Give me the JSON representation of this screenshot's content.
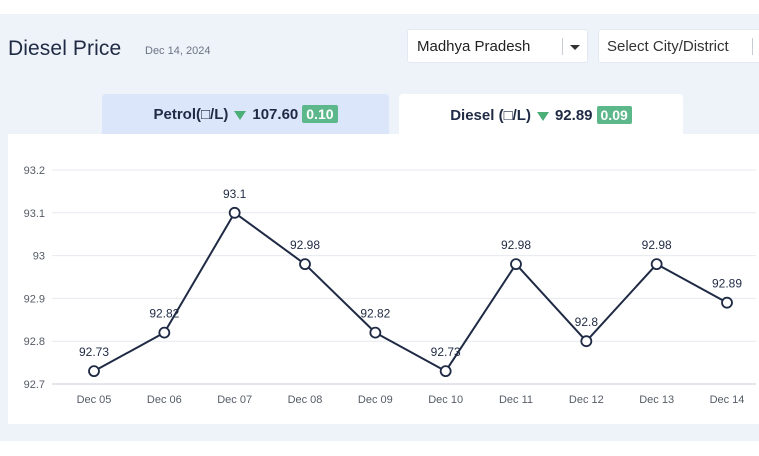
{
  "header": {
    "title": "Diesel Price",
    "date": "Dec 14, 2024"
  },
  "filters": {
    "state_value": "Madhya Pradesh",
    "city_placeholder": "Select City/District"
  },
  "tabs": [
    {
      "label": "Petrol(□/L)",
      "price": "107.60",
      "change": "0.10",
      "trend": "down"
    },
    {
      "label": "Diesel (□/L)",
      "price": "92.89",
      "change": "0.09",
      "trend": "down"
    }
  ],
  "colors": {
    "accent": "#1f2a44",
    "line": "#1f2a44",
    "badge": "#5cb88a",
    "down_arrow": "#4caf78",
    "active_tab_bg": "#ffffff",
    "inactive_tab_bg": "#dbe6fb",
    "page_bg": "#eef2f9"
  },
  "chart_data": {
    "type": "line",
    "categories": [
      "Dec 05",
      "Dec 06",
      "Dec 07",
      "Dec 08",
      "Dec 09",
      "Dec 10",
      "Dec 11",
      "Dec 12",
      "Dec 13",
      "Dec 14"
    ],
    "values": [
      92.73,
      92.82,
      93.1,
      92.98,
      92.82,
      92.73,
      92.98,
      92.8,
      92.98,
      92.89
    ],
    "data_labels": [
      "92.73",
      "92.82",
      "93.1",
      "92.98",
      "92.82",
      "92.73",
      "92.98",
      "92.8",
      "92.98",
      "92.89"
    ],
    "yticks": [
      92.7,
      92.8,
      92.9,
      93,
      93.1,
      93.2
    ],
    "ytick_labels": [
      "92.7",
      "92.8",
      "92.9",
      "93",
      "93.1",
      "93.2"
    ],
    "ylim": [
      92.7,
      93.2
    ],
    "grid": true,
    "title": "",
    "xlabel": "",
    "ylabel": ""
  }
}
